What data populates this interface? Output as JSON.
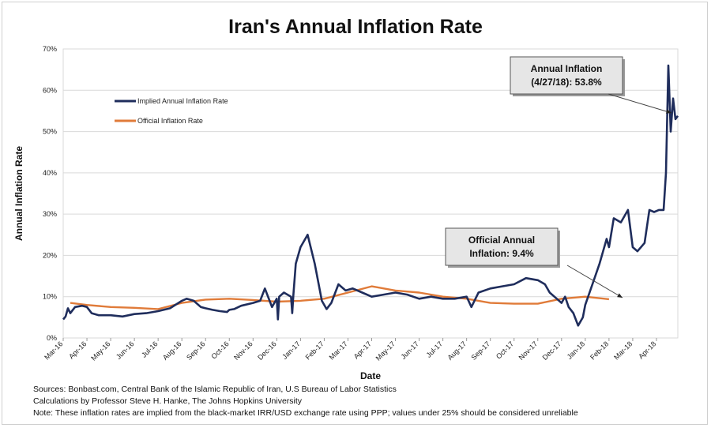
{
  "chart_data": {
    "type": "line",
    "title": "Iran's Annual Inflation Rate",
    "xlabel": "Date",
    "ylabel": "Annual Inflation Rate",
    "ylim": [
      0,
      70
    ],
    "yticks": [
      "0%",
      "10%",
      "20%",
      "30%",
      "40%",
      "50%",
      "60%",
      "70%"
    ],
    "xlim": [
      0,
      25.9
    ],
    "xticks": [
      "Mar-16",
      "Apr-16",
      "May-16",
      "Jun-16",
      "Jul-16",
      "Aug-16",
      "Sep-16",
      "Oct-16",
      "Nov-16",
      "Dec-16",
      "Jan-17",
      "Feb-17",
      "Mar-17",
      "Apr-17",
      "May-17",
      "Jun-17",
      "Jul-17",
      "Aug-17",
      "Sep-17",
      "Oct-17",
      "Nov-17",
      "Dec-17",
      "Jan-18",
      "Feb-18",
      "Mar-18",
      "Apr-18"
    ],
    "grid": true,
    "legend_position": "top-left",
    "series": [
      {
        "name": "Implied Annual Inflation Rate",
        "color": "#1f2d5c",
        "x": [
          0,
          0.1,
          0.2,
          0.3,
          0.5,
          0.8,
          1.0,
          1.2,
          1.5,
          2.0,
          2.5,
          3.0,
          3.5,
          4.0,
          4.5,
          5.0,
          5.2,
          5.5,
          5.8,
          6.0,
          6.3,
          6.6,
          6.9,
          7.0,
          7.2,
          7.5,
          8.0,
          8.3,
          8.5,
          8.8,
          9.0,
          9.05,
          9.1,
          9.3,
          9.6,
          9.65,
          9.7,
          9.8,
          10.0,
          10.3,
          10.6,
          10.9,
          11.1,
          11.3,
          11.6,
          11.9,
          12.2,
          12.6,
          13.0,
          13.5,
          14.0,
          14.5,
          15.0,
          15.5,
          16.0,
          16.5,
          17.0,
          17.2,
          17.5,
          18.0,
          18.5,
          19.0,
          19.5,
          20.0,
          20.3,
          20.5,
          20.8,
          21.0,
          21.15,
          21.3,
          21.5,
          21.7,
          21.9,
          22.0,
          22.3,
          22.6,
          22.9,
          23.0,
          23.2,
          23.5,
          23.8,
          24.0,
          24.2,
          24.5,
          24.7,
          24.9,
          25.1,
          25.3,
          25.4,
          25.5,
          25.6,
          25.7,
          25.8,
          25.9
        ],
        "y": [
          4.5,
          5.2,
          7.2,
          6.0,
          7.5,
          7.8,
          7.5,
          6.0,
          5.5,
          5.5,
          5.2,
          5.8,
          6.0,
          6.5,
          7.2,
          9.0,
          9.5,
          9.0,
          7.5,
          7.2,
          6.8,
          6.5,
          6.3,
          6.8,
          7.0,
          7.8,
          8.5,
          9.0,
          12.0,
          7.5,
          9.5,
          4.5,
          10.0,
          11.0,
          10.0,
          6.0,
          10.5,
          18.0,
          22.0,
          25.0,
          18.0,
          9.0,
          7.0,
          8.5,
          13.0,
          11.5,
          12.0,
          11.0,
          10.0,
          10.5,
          11.0,
          10.5,
          9.5,
          10.0,
          9.5,
          9.5,
          10.0,
          7.5,
          11.0,
          12.0,
          12.5,
          13.0,
          14.5,
          14.0,
          13.0,
          11.0,
          9.5,
          8.5,
          10.0,
          7.5,
          6.0,
          3.0,
          5.0,
          8.0,
          13.0,
          18.0,
          24.0,
          22.0,
          29.0,
          28.0,
          31.0,
          22.0,
          21.0,
          23.0,
          31.0,
          30.5,
          31.0,
          31.0,
          40.0,
          66.0,
          50.0,
          58.0,
          53.0,
          53.8
        ]
      },
      {
        "name": "Official Inflation Rate",
        "color": "#e07b39",
        "x": [
          0.3,
          1.0,
          2.0,
          3.0,
          4.0,
          5.0,
          6.0,
          7.0,
          8.0,
          9.0,
          10.0,
          11.0,
          12.0,
          13.0,
          14.0,
          15.0,
          16.0,
          17.0,
          18.0,
          19.0,
          20.0,
          21.0,
          22.0,
          23.0
        ],
        "y": [
          8.5,
          8.0,
          7.5,
          7.3,
          7.0,
          8.5,
          9.3,
          9.5,
          9.2,
          8.8,
          9.0,
          9.5,
          11.0,
          12.5,
          11.5,
          11.0,
          10.0,
          9.5,
          8.5,
          8.3,
          8.3,
          9.5,
          10.0,
          9.4
        ]
      }
    ],
    "annotations": [
      {
        "line1": "Annual Inflation",
        "line2": "(4/27/18): 53.8%"
      },
      {
        "line1": "Official Annual",
        "line2": "Inflation: 9.4%"
      }
    ],
    "notes": [
      "Sources: Bonbast.com, Central Bank of the Islamic Republic of Iran, U.S Bureau of Labor Statistics",
      "Calculations by Professor Steve H. Hanke, The Johns Hopkins University",
      "Note: These inflation rates are implied from the black-market IRR/USD exchange rate using PPP; values under 25% should be considered unreliable"
    ]
  }
}
